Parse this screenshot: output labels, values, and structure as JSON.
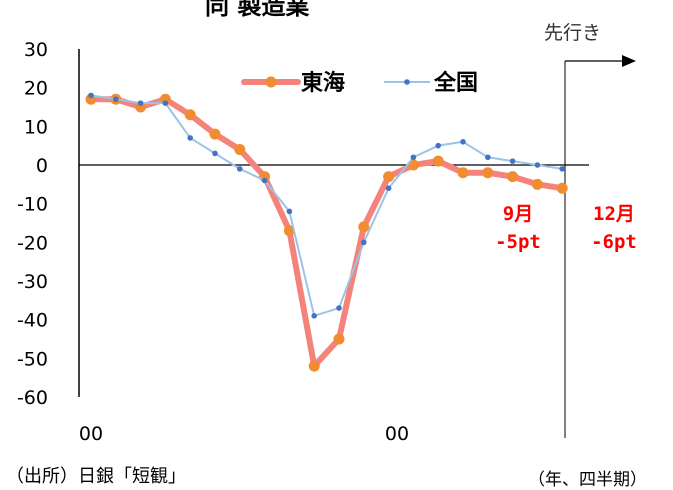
{
  "title": "同 製造業",
  "forecast_label": "先行き",
  "source": "（出所）日銀「短観」",
  "unit_label": "（年、四半期）",
  "colors": {
    "tokai": "#f4837b",
    "tokai_marker": "#f28c33",
    "zenkoku_line": "#9dc3e6",
    "zenkoku_marker": "#4472c4",
    "annotation": "#ff0000"
  },
  "annotations": [
    {
      "line1": "9月",
      "line2": "-5pt"
    },
    {
      "line1": "12月",
      "line2": "-6pt"
    }
  ],
  "chart_data": {
    "type": "line",
    "ylim": [
      -60,
      30
    ],
    "y_ticks": [
      30,
      20,
      10,
      0,
      -10,
      -20,
      -30,
      -40,
      -50,
      -60
    ],
    "x_tick_labels": [
      "00",
      "00"
    ],
    "legend_position": "top-center",
    "series": [
      {
        "name": "東海",
        "values": [
          17,
          17,
          15,
          17,
          13,
          8,
          4,
          -3,
          -17,
          -52,
          -45,
          -16,
          -3,
          0,
          1,
          -2,
          -2,
          -3,
          -5,
          -6
        ]
      },
      {
        "name": "全国",
        "values": [
          18,
          17,
          16,
          16,
          7,
          3,
          -1,
          -4,
          -12,
          -39,
          -37,
          -20,
          -6,
          2,
          5,
          6,
          2,
          1,
          0,
          -1
        ]
      }
    ]
  }
}
